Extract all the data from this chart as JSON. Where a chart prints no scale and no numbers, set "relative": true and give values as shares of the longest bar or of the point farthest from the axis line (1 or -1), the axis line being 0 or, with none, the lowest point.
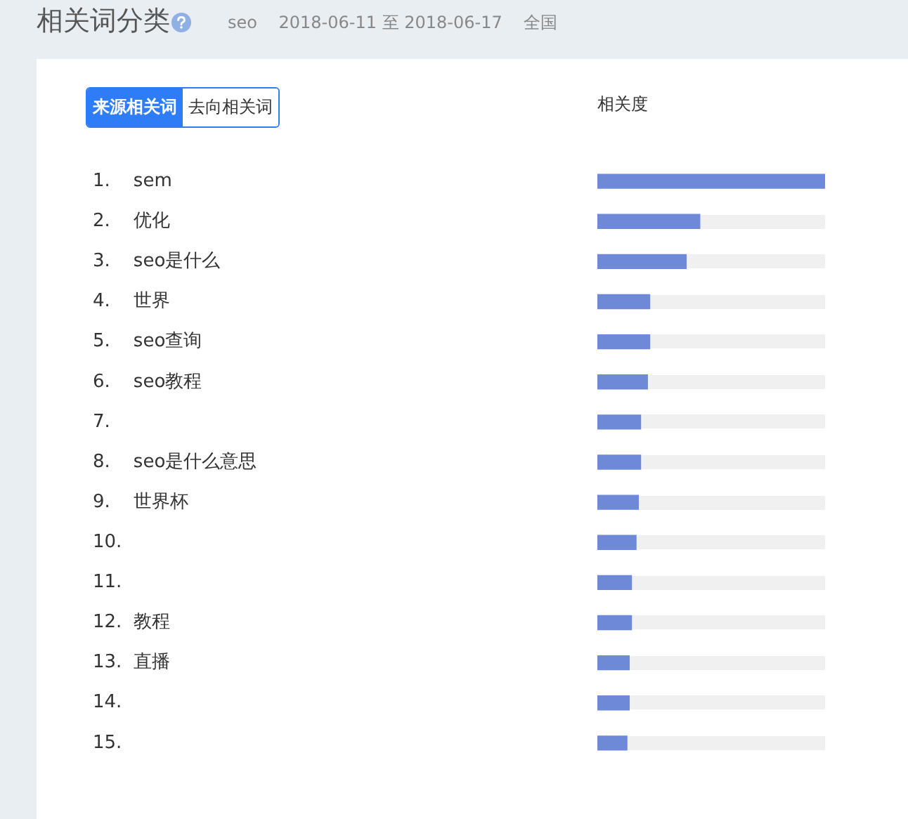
{
  "chart_data": {
    "type": "bar",
    "orientation": "horizontal",
    "relative": true,
    "title": "相关词分类",
    "subtitle": "seo    2018-06-11 至 2018-06-17    全国",
    "xlabel": "相关度",
    "annotations": [
      "来源相关词",
      "去向相关词"
    ],
    "categories": [
      "1.    sem",
      "2.    优化",
      "3.    seo是什么",
      "4.    世界",
      "5.    seo查询",
      "6.    seo教程",
      "7.",
      "8.    seo是什么意思",
      "9.    世界杯",
      "10.",
      "11.",
      "12.  教程",
      "13.  直播",
      "14.",
      "15."
    ],
    "values": [
      1,
      0.45,
      0.39,
      0.23,
      0.23,
      0.22,
      0.19,
      0.19,
      0.18,
      0.17,
      0.15,
      0.15,
      0.14,
      0.14,
      0.13
    ],
    "color": "#6f89d9",
    "grid": false,
    "legend": false
  }
}
